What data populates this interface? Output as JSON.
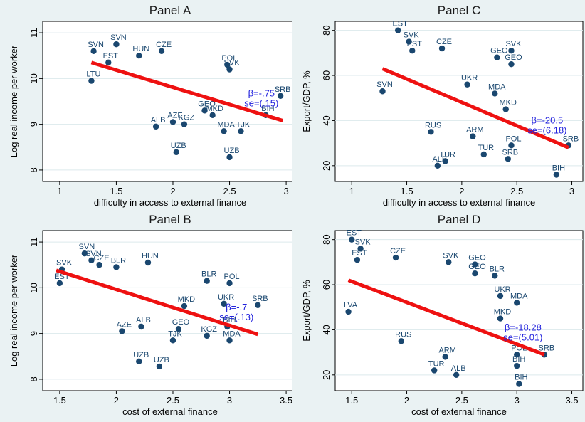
{
  "chart_data": [
    {
      "type": "scatter",
      "title": "Panel A",
      "xlabel": "difficulty in access to external finance",
      "ylabel": "Log real income per worker",
      "xlim": [
        0.85,
        3.1
      ],
      "ylim": [
        7.75,
        11.25
      ],
      "xticks": [
        "1",
        "1.5",
        "2",
        "2.5",
        "3"
      ],
      "yticks": [
        "8",
        "9",
        "10",
        "11"
      ],
      "grid": "horizontal",
      "fit_line": {
        "x": [
          1.28,
          2.97
        ],
        "y": [
          10.35,
          9.08
        ]
      },
      "annotation": {
        "beta": "β=-.75",
        "se": "se=(.15)"
      },
      "points": [
        {
          "label": "SVN",
          "x": 1.5,
          "y": 10.75
        },
        {
          "label": "SVN",
          "x": 1.3,
          "y": 10.6
        },
        {
          "label": "EST",
          "x": 1.43,
          "y": 10.35
        },
        {
          "label": "LTU",
          "x": 1.28,
          "y": 9.95
        },
        {
          "label": "HUN",
          "x": 1.7,
          "y": 10.5
        },
        {
          "label": "CZE",
          "x": 1.9,
          "y": 10.6
        },
        {
          "label": "SVK",
          "x": 2.5,
          "y": 10.2
        },
        {
          "label": "POL",
          "x": 2.48,
          "y": 10.3
        },
        {
          "label": "SRB",
          "x": 2.95,
          "y": 9.62
        },
        {
          "label": "BIH",
          "x": 2.82,
          "y": 9.2
        },
        {
          "label": "UZB",
          "x": 2.03,
          "y": 8.39
        },
        {
          "label": "UZB",
          "x": 2.5,
          "y": 8.28
        },
        {
          "label": "ALB",
          "x": 1.85,
          "y": 8.95
        },
        {
          "label": "AZE",
          "x": 2.0,
          "y": 9.05
        },
        {
          "label": "MDA",
          "x": 2.45,
          "y": 8.85
        },
        {
          "label": "TJK",
          "x": 2.6,
          "y": 8.85
        },
        {
          "label": "KGZ",
          "x": 2.1,
          "y": 9.0
        },
        {
          "label": "MKD",
          "x": 2.35,
          "y": 9.2
        },
        {
          "label": "GEO",
          "x": 2.28,
          "y": 9.3
        }
      ]
    },
    {
      "type": "scatter",
      "title": "Panel C",
      "xlabel": "difficulty in access to external finance",
      "ylabel": "Export/GDP, %",
      "xlim": [
        0.85,
        3.1
      ],
      "ylim": [
        13,
        84
      ],
      "xticks": [
        "1",
        "1.5",
        "2",
        "2.5",
        "3"
      ],
      "yticks": [
        "20",
        "40",
        "60",
        "80"
      ],
      "grid": "horizontal",
      "fit_line": {
        "x": [
          1.28,
          2.97
        ],
        "y": [
          63,
          28
        ]
      },
      "annotation": {
        "beta": "β=-20.5",
        "se": "se=(6.18)"
      },
      "points": [
        {
          "label": "EST",
          "x": 1.42,
          "y": 80
        },
        {
          "label": "SVK",
          "x": 1.52,
          "y": 75
        },
        {
          "label": "EST",
          "x": 1.55,
          "y": 71
        },
        {
          "label": "CZE",
          "x": 1.82,
          "y": 72
        },
        {
          "label": "SVK",
          "x": 2.45,
          "y": 71
        },
        {
          "label": "GEO",
          "x": 2.32,
          "y": 68
        },
        {
          "label": "GEO",
          "x": 2.45,
          "y": 65
        },
        {
          "label": "SVN",
          "x": 1.28,
          "y": 53
        },
        {
          "label": "SRB",
          "x": 2.97,
          "y": 29
        },
        {
          "label": "BIH",
          "x": 2.86,
          "y": 16
        },
        {
          "label": "TUR",
          "x": 1.85,
          "y": 22
        },
        {
          "label": "ALB",
          "x": 1.78,
          "y": 20
        },
        {
          "label": "RUS",
          "x": 1.72,
          "y": 35
        },
        {
          "label": "MKD",
          "x": 2.4,
          "y": 45
        },
        {
          "label": "POL",
          "x": 2.45,
          "y": 29
        },
        {
          "label": "ARM",
          "x": 2.1,
          "y": 33
        },
        {
          "label": "TUR",
          "x": 2.2,
          "y": 25
        },
        {
          "label": "MDA",
          "x": 2.3,
          "y": 52
        },
        {
          "label": "UKR",
          "x": 2.05,
          "y": 56
        },
        {
          "label": "SRB",
          "x": 2.42,
          "y": 23
        }
      ]
    },
    {
      "type": "scatter",
      "title": "Panel B",
      "xlabel": "cost of external finance",
      "ylabel": "Log real income per worker",
      "xlim": [
        1.35,
        3.6
      ],
      "ylim": [
        7.75,
        11.25
      ],
      "xticks": [
        "1.5",
        "2",
        "2.5",
        "3",
        "3.5"
      ],
      "yticks": [
        "8",
        "9",
        "10",
        "11"
      ],
      "grid": "horizontal",
      "fit_line": {
        "x": [
          1.47,
          3.25
        ],
        "y": [
          10.38,
          8.98
        ]
      },
      "annotation": {
        "beta": "β=-.7",
        "se": "se=(.13)"
      },
      "points": [
        {
          "label": "EST",
          "x": 1.5,
          "y": 10.1
        },
        {
          "label": "SVK",
          "x": 1.52,
          "y": 10.4
        },
        {
          "label": "SVN",
          "x": 1.72,
          "y": 10.75
        },
        {
          "label": "SVN",
          "x": 1.78,
          "y": 10.6
        },
        {
          "label": "CZE",
          "x": 1.85,
          "y": 10.5
        },
        {
          "label": "BLR",
          "x": 2.0,
          "y": 10.45
        },
        {
          "label": "HUN",
          "x": 2.28,
          "y": 10.55
        },
        {
          "label": "BLR",
          "x": 2.8,
          "y": 10.15
        },
        {
          "label": "POL",
          "x": 3.0,
          "y": 10.1
        },
        {
          "label": "SRB",
          "x": 3.25,
          "y": 9.62
        },
        {
          "label": "UKR",
          "x": 2.95,
          "y": 9.65
        },
        {
          "label": "MKD",
          "x": 2.6,
          "y": 9.6
        },
        {
          "label": "BIH",
          "x": 2.98,
          "y": 9.15
        },
        {
          "label": "MDA",
          "x": 3.0,
          "y": 8.85
        },
        {
          "label": "KGZ",
          "x": 2.8,
          "y": 8.95
        },
        {
          "label": "GEO",
          "x": 2.55,
          "y": 9.1
        },
        {
          "label": "AZE",
          "x": 2.05,
          "y": 9.05
        },
        {
          "label": "ALB",
          "x": 2.22,
          "y": 9.15
        },
        {
          "label": "TJK",
          "x": 2.5,
          "y": 8.85
        },
        {
          "label": "UZB",
          "x": 2.2,
          "y": 8.39
        },
        {
          "label": "UZB",
          "x": 2.38,
          "y": 8.28
        }
      ]
    },
    {
      "type": "scatter",
      "title": "Panel D",
      "xlabel": "cost of external finance",
      "ylabel": "Export/GDP, %",
      "xlim": [
        1.35,
        3.6
      ],
      "ylim": [
        13,
        84
      ],
      "xticks": [
        "1.5",
        "2",
        "2.5",
        "3",
        "3.5"
      ],
      "yticks": [
        "20",
        "40",
        "60",
        "80"
      ],
      "grid": "horizontal",
      "fit_line": {
        "x": [
          1.47,
          3.25
        ],
        "y": [
          62,
          29
        ]
      },
      "annotation": {
        "beta": "β=-18.28",
        "se": "se=(5.01)"
      },
      "points": [
        {
          "label": "EST",
          "x": 1.5,
          "y": 80
        },
        {
          "label": "SVK",
          "x": 1.58,
          "y": 76
        },
        {
          "label": "EST",
          "x": 1.55,
          "y": 71
        },
        {
          "label": "CZE",
          "x": 1.9,
          "y": 72
        },
        {
          "label": "SVK",
          "x": 2.38,
          "y": 70
        },
        {
          "label": "GEO",
          "x": 2.62,
          "y": 69
        },
        {
          "label": "GEO",
          "x": 2.62,
          "y": 65
        },
        {
          "label": "BLR",
          "x": 2.8,
          "y": 64
        },
        {
          "label": "LVA",
          "x": 1.47,
          "y": 48
        },
        {
          "label": "UKR",
          "x": 2.85,
          "y": 55
        },
        {
          "label": "MDA",
          "x": 3.0,
          "y": 52
        },
        {
          "label": "MKD",
          "x": 2.85,
          "y": 45
        },
        {
          "label": "RUS",
          "x": 1.95,
          "y": 35
        },
        {
          "label": "SRB",
          "x": 3.25,
          "y": 29
        },
        {
          "label": "POL",
          "x": 3.0,
          "y": 29
        },
        {
          "label": "BIH",
          "x": 3.0,
          "y": 24
        },
        {
          "label": "BIH",
          "x": 3.02,
          "y": 16
        },
        {
          "label": "ALB",
          "x": 2.45,
          "y": 20
        },
        {
          "label": "TUR",
          "x": 2.25,
          "y": 22
        },
        {
          "label": "ARM",
          "x": 2.35,
          "y": 28
        }
      ]
    }
  ]
}
